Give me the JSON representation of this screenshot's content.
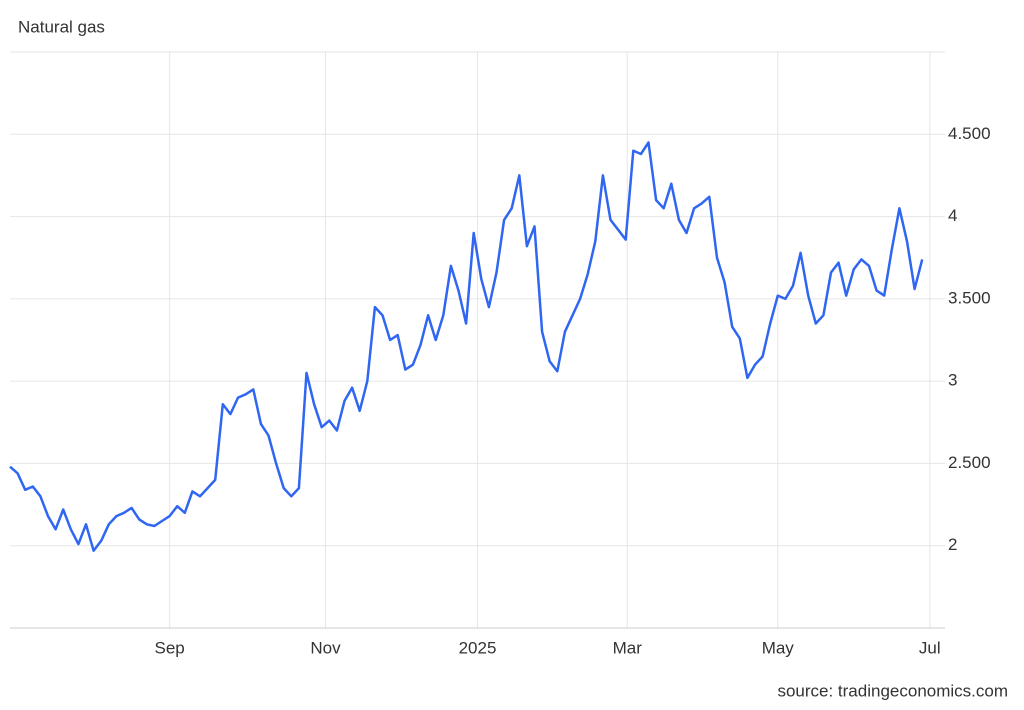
{
  "chart_data": {
    "type": "line",
    "title": "Natural gas",
    "source": "source: tradingeconomics.com",
    "color": "#2f66f2",
    "grid": true,
    "x": [
      0,
      1,
      2,
      3,
      4,
      5,
      6,
      7,
      8,
      9,
      10,
      11,
      12,
      13,
      14,
      15,
      16,
      17,
      18,
      19,
      20,
      21,
      22,
      23,
      24,
      25,
      26,
      27,
      28,
      29,
      30,
      31,
      32,
      33,
      34,
      35,
      36,
      37,
      38,
      39,
      40,
      41,
      42,
      43,
      44,
      45,
      46,
      47,
      48,
      49,
      50,
      51,
      52,
      53,
      54,
      55,
      56,
      57,
      58,
      59,
      60,
      61,
      62,
      63,
      64,
      65,
      66,
      67,
      68,
      69,
      70,
      71,
      72,
      73,
      74,
      75,
      76,
      77,
      78,
      79,
      80,
      81,
      82,
      83,
      84,
      85,
      86,
      87,
      88,
      89,
      90,
      91,
      92,
      93,
      94,
      95,
      96,
      97,
      98,
      99,
      100,
      101,
      102,
      103,
      104,
      105,
      106,
      107,
      108,
      109,
      110,
      111,
      112,
      113,
      114,
      115,
      116,
      117,
      118,
      119,
      120
    ],
    "values": [
      2.48,
      2.44,
      2.34,
      2.36,
      2.3,
      2.18,
      2.1,
      2.22,
      2.1,
      2.01,
      2.13,
      1.97,
      2.03,
      2.13,
      2.18,
      2.2,
      2.23,
      2.16,
      2.13,
      2.12,
      2.15,
      2.18,
      2.24,
      2.2,
      2.33,
      2.3,
      2.35,
      2.4,
      2.86,
      2.8,
      2.9,
      2.92,
      2.95,
      2.74,
      2.67,
      2.5,
      2.35,
      2.3,
      2.35,
      3.05,
      2.86,
      2.72,
      2.76,
      2.7,
      2.88,
      2.96,
      2.82,
      3.0,
      3.45,
      3.4,
      3.25,
      3.28,
      3.07,
      3.1,
      3.22,
      3.4,
      3.25,
      3.4,
      3.7,
      3.55,
      3.35,
      3.9,
      3.62,
      3.45,
      3.66,
      3.98,
      4.05,
      4.25,
      3.82,
      3.94,
      3.3,
      3.12,
      3.06,
      3.3,
      3.4,
      3.5,
      3.65,
      3.85,
      4.25,
      3.98,
      3.92,
      3.86,
      4.4,
      4.38,
      4.45,
      4.1,
      4.05,
      4.2,
      3.98,
      3.9,
      4.05,
      4.08,
      4.12,
      3.75,
      3.6,
      3.33,
      3.26,
      3.02,
      3.1,
      3.15,
      3.35,
      3.52,
      3.5,
      3.58,
      3.78,
      3.52,
      3.35,
      3.4,
      3.66,
      3.72,
      3.52,
      3.68,
      3.74,
      3.7,
      3.55,
      3.52,
      3.8,
      4.05,
      3.85,
      3.56,
      3.74
    ],
    "xlim": [
      0,
      123
    ],
    "xticks": [
      {
        "value": 21,
        "label": "Sep"
      },
      {
        "value": 41.5,
        "label": "Nov"
      },
      {
        "value": 61.5,
        "label": "2025"
      },
      {
        "value": 81.2,
        "label": "Mar"
      },
      {
        "value": 101,
        "label": "May"
      },
      {
        "value": 121,
        "label": "Jul"
      }
    ],
    "ylim": [
      1.5,
      5.0
    ],
    "yticks": [
      2,
      {
        "value": 2.5,
        "label": "2.500"
      },
      3,
      {
        "value": 3.5,
        "label": "3.500"
      },
      4,
      {
        "value": 4.5,
        "label": "4.500"
      }
    ]
  }
}
